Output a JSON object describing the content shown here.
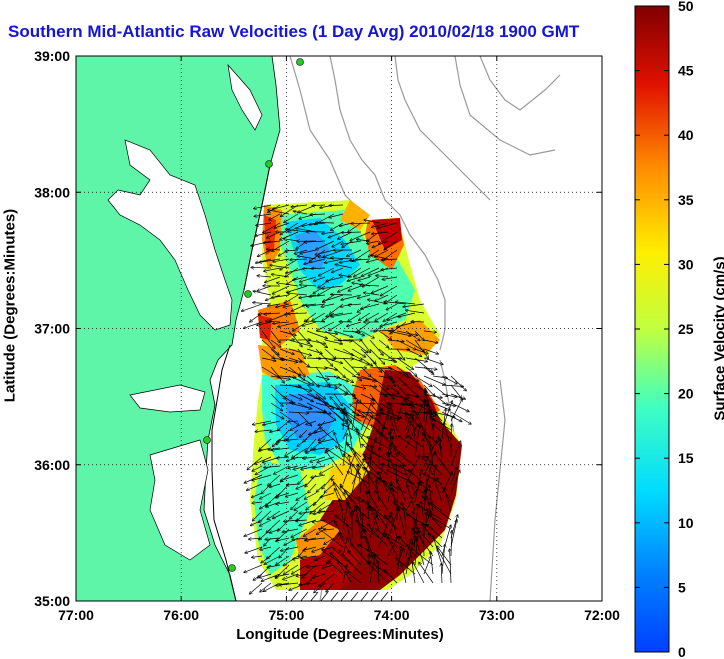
{
  "title": "Southern Mid-Atlantic Raw Velocities (1 Day Avg) 2010/02/18 1900 GMT",
  "axes": {
    "xlabel": "Longitude (Degrees:Minutes)",
    "ylabel": "Latitude (Degrees:Minutes)",
    "x_ticks": [
      "77:00",
      "76:00",
      "75:00",
      "74:00",
      "73:00",
      "72:00"
    ],
    "y_ticks": [
      "39:00",
      "38:00",
      "37:00",
      "36:00",
      "35:00"
    ],
    "x_range_deg_west": [
      77,
      72
    ],
    "y_range_deg_north": [
      35,
      39
    ],
    "grid": "dotted"
  },
  "colorbar": {
    "label": "Surface Velocity (cm/s)",
    "ticks": [
      "50",
      "45",
      "40",
      "35",
      "30",
      "25",
      "20",
      "15",
      "10",
      "5",
      "0"
    ],
    "range": [
      0,
      50
    ],
    "colormap": "jet"
  },
  "colors": {
    "land": "#5ef5a8",
    "title": "#1515d8",
    "coastline": "#000000",
    "bathymetry": "#9a9a9a",
    "station": "#22cc22"
  }
}
